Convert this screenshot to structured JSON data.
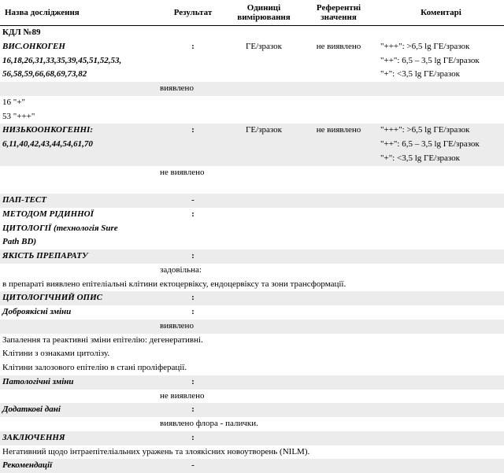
{
  "header": {
    "name": "Назва дослідження",
    "result": "Результат",
    "units": "Одиниці вимірювання",
    "ref": "Референтні значення",
    "comments": "Коментарі"
  },
  "lab_no": "КДЛ №89",
  "high_onco": {
    "title": "ВИС.ОНКОГЕН",
    "sub1": "16,18,26,31,33,35,39,45,51,52,53,",
    "sub2": "56,58,59,66,68,69,73,82",
    "unit": "ГЕ/зразок",
    "ref": "не виявлено",
    "c1": "\"+++\": >6,5 lg ГЕ/зразок",
    "c2": "\"++\": 6,5 – 3,5 lg ГЕ/зразок",
    "c3": "\"+\": <3,5 lg ГЕ/зразок",
    "detected": "виявлено",
    "d1": "16 \"+\"",
    "d2": "53 \"+++\""
  },
  "low_onco": {
    "title": "НИЗЬКООНКОГЕННІ:",
    "sub1": "6,11,40,42,43,44,54,61,70",
    "unit": "ГЕ/зразок",
    "ref": "не виявлено",
    "c1": "\"+++\": >6,5 lg ГЕ/зразок",
    "c2": "\"++\": 6,5 – 3,5 lg ГЕ/зразок",
    "c3": "\"+\": <3,5 lg ГЕ/зразок",
    "detected": "не виявлено"
  },
  "pap": {
    "title": "ПАП-ТЕСТ",
    "val": "-"
  },
  "method": {
    "l1": "МЕТОДОМ РІДИННОЇ",
    "l2": "ЦИТОЛОГІЇ (технологія Sure",
    "l3": "Path BD)"
  },
  "quality": {
    "title": "ЯКІСТЬ ПРЕПАРАТУ",
    "val": "задовільна:",
    "note": "в препараті виявлено епітеліальні клітини ектоцервіксу, ендоцервіксу та зони трансформації."
  },
  "cyto": {
    "title": "ЦИТОЛОГІЧНИЙ ОПИС"
  },
  "benign": {
    "title": "Доброякісні зміни",
    "val": "виявлено",
    "n1": "Запалення та реактивні зміни епітелію: дегенеративні.",
    "n2": "Клітини з ознаками цитолізу.",
    "n3": "Клітини залозового епітелію в стані проліферації."
  },
  "path": {
    "title": "Патологічні зміни",
    "val": "не виявлено"
  },
  "extra": {
    "title": "Додаткові дані",
    "val": "виявлено флора - палички."
  },
  "concl": {
    "title": "ЗАКЛЮЧЕННЯ",
    "text": "Негативний щодо інтраепітеліальних уражень та злоякісних новоутворень (NILM)."
  },
  "recom": {
    "title": "Рекомендації",
    "val": "-"
  },
  "colon": ":"
}
